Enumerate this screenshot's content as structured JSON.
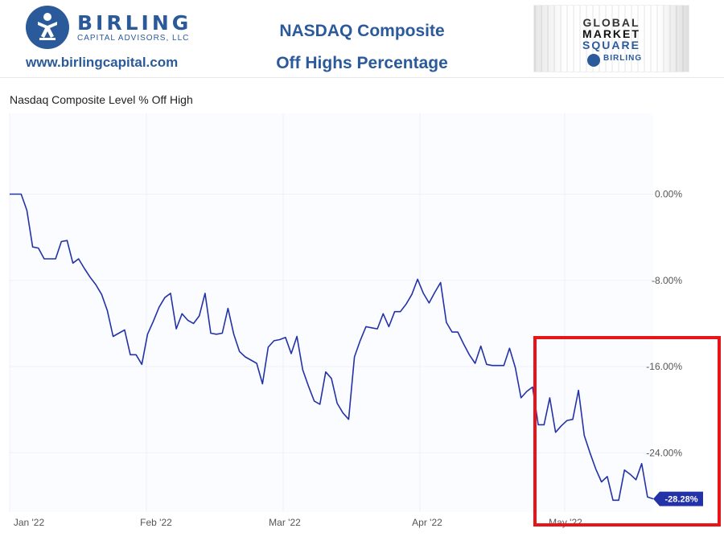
{
  "header": {
    "brand_name": "BIRLING",
    "brand_sub": "CAPITAL ADVISORS, LLC",
    "website": "www.birlingcapital.com",
    "title_line1": "NASDAQ Composite",
    "title_line2": "Off Highs Percentage",
    "badge": {
      "line1": "GLOBAL",
      "line2": "MARKET",
      "line3": "SQUARE",
      "brand": "BIRLING"
    },
    "colors": {
      "brand_blue": "#2b5a9b",
      "highlight_red": "#e81417"
    }
  },
  "chart_data": {
    "type": "line",
    "title": "Nasdaq Composite Level % Off High",
    "xlabel": "",
    "ylabel": "",
    "x_tick_labels": [
      "Jan '22",
      "Feb '22",
      "Mar '22",
      "Apr '22",
      "May '22"
    ],
    "y_tick_labels": [
      "0.00%",
      "-8.00%",
      "-16.00%",
      "-24.00%"
    ],
    "y_ticks": [
      0,
      -8,
      -16,
      -24
    ],
    "ylim": [
      -29.5,
      7.5
    ],
    "grid": true,
    "line_color": "#2432a8",
    "last_value_label": "-28.28%",
    "series": [
      {
        "values": [
          0.0,
          0.0,
          0.0,
          -1.5,
          -4.9,
          -5.0,
          -6.0,
          -6.0,
          -6.0,
          -4.4,
          -4.3,
          -6.4,
          -6.0,
          -6.9,
          -7.7,
          -8.4,
          -9.3,
          -10.8,
          -13.2,
          -12.9,
          -12.6,
          -14.9,
          -14.9,
          -15.8,
          -13.0,
          -11.8,
          -10.5,
          -9.6,
          -9.2,
          -12.5,
          -11.1,
          -11.7,
          -12.0,
          -11.3,
          -9.2,
          -12.9,
          -13.0,
          -12.9,
          -10.6,
          -13.0,
          -14.6,
          -15.1,
          -15.4,
          -15.7,
          -17.6,
          -14.2,
          -13.6,
          -13.5,
          -13.3,
          -14.8,
          -13.2,
          -16.3,
          -17.8,
          -19.2,
          -19.5,
          -16.5,
          -17.1,
          -19.4,
          -20.3,
          -20.9,
          -15.1,
          -13.6,
          -12.3,
          -12.4,
          -12.5,
          -11.1,
          -12.3,
          -10.9,
          -10.9,
          -10.2,
          -9.3,
          -7.9,
          -9.2,
          -10.1,
          -9.1,
          -8.2,
          -11.9,
          -12.8,
          -12.8,
          -13.9,
          -14.9,
          -15.7,
          -14.1,
          -15.8,
          -15.9,
          -15.9,
          -15.9,
          -14.3,
          -16.1,
          -18.9,
          -18.3,
          -17.9,
          -21.4,
          -21.4,
          -18.9,
          -22.1,
          -21.5,
          -21.0,
          -20.9,
          -18.2,
          -22.4,
          -24.0,
          -25.5,
          -26.7,
          -26.2,
          -28.4,
          -28.4,
          -25.6,
          -26.0,
          -26.5,
          -25.0,
          -28.1,
          -28.28
        ]
      }
    ]
  }
}
